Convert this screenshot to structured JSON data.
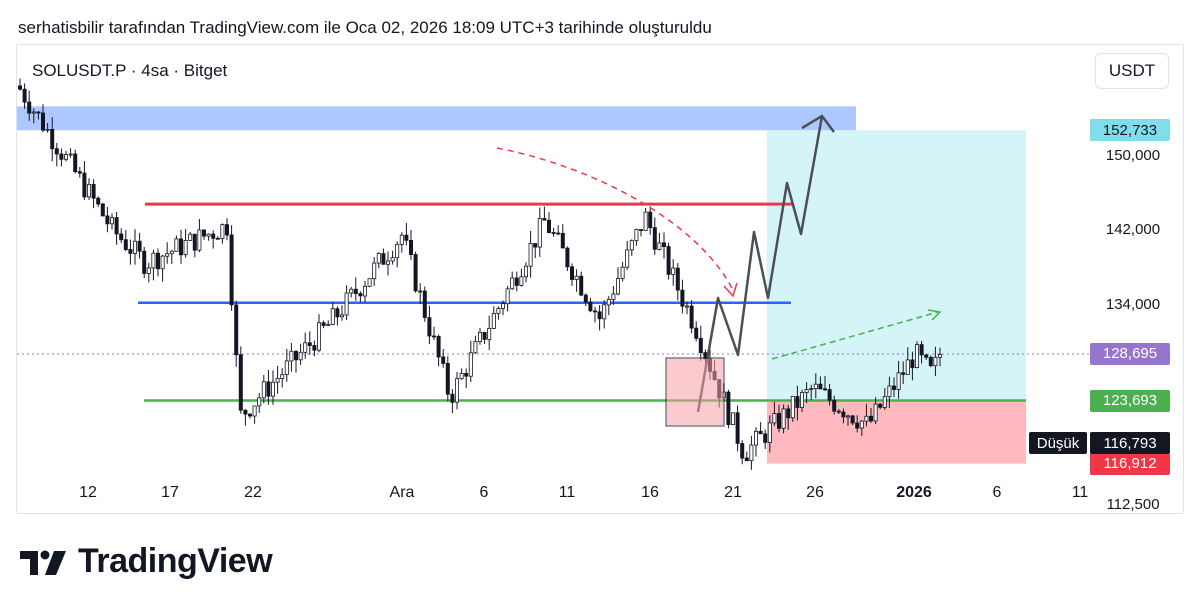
{
  "header": {
    "caption": "serhatisbilir tarafından TradingView.com ile Oca 02, 2026 18:09 UTC+3 tarihinde oluşturuldu"
  },
  "symbol": {
    "label": "SOLUSDT.P · 4sa · Bitget"
  },
  "currency_button": "USDT",
  "price_tags": {
    "target": "152,733",
    "current": "128,695",
    "support": "123,693",
    "stop": "116,912",
    "low_label": "Düşük",
    "low_value": "116,793"
  },
  "brand": {
    "name": "TradingView"
  },
  "colors": {
    "resistance": "#f23645",
    "mid": "#2962ff",
    "support": "#4caf50",
    "target_zone": "#7aa2ff",
    "profit_zone": "#b2ebf2",
    "loss_zone": "#ff8a95",
    "current_tag": "#9575cd",
    "target_tag": "#80deea",
    "candles": "#131722"
  },
  "chart_data": {
    "type": "candlestick",
    "instrument": "SOLUSDT.P",
    "timeframe": "4sa",
    "exchange": "Bitget",
    "y_axis": {
      "ticks": [
        "112,500",
        "134,000",
        "142,000",
        "150,000"
      ],
      "range": [
        111500,
        162000
      ]
    },
    "x_axis": {
      "ticks": [
        "12",
        "17",
        "22",
        "Ara",
        "6",
        "11",
        "16",
        "21",
        "26",
        "2026",
        "6",
        "11"
      ]
    },
    "levels": {
      "target_zone": [
        152733,
        155300
      ],
      "resistance": 144800,
      "mid_range": 134200,
      "support": 123693,
      "current": 128695,
      "stop": 116912,
      "low": 116793
    },
    "position": {
      "type": "long",
      "entry": 123693,
      "take_profit": 152733,
      "stop_loss": 116912
    },
    "approx_path": [
      {
        "t": "12",
        "price": 157500
      },
      {
        "t": "14",
        "price": 142000
      },
      {
        "t": "17",
        "price": 138500
      },
      {
        "t": "19",
        "price": 142500
      },
      {
        "t": "22",
        "price": 122000
      },
      {
        "t": "25",
        "price": 132000
      },
      {
        "t": "28",
        "price": 141500
      },
      {
        "t": "Ara",
        "price": 124000
      },
      {
        "t": "5",
        "price": 143000
      },
      {
        "t": "8",
        "price": 132500
      },
      {
        "t": "10",
        "price": 143500
      },
      {
        "t": "14",
        "price": 131500
      },
      {
        "t": "17",
        "price": 127500
      },
      {
        "t": "19",
        "price": 118000
      },
      {
        "t": "22",
        "price": 125000
      },
      {
        "t": "26",
        "price": 121000
      },
      {
        "t": "29",
        "price": 128700
      },
      {
        "t": "2026",
        "price": 126500
      },
      {
        "t": "2",
        "price": 128700
      }
    ]
  }
}
